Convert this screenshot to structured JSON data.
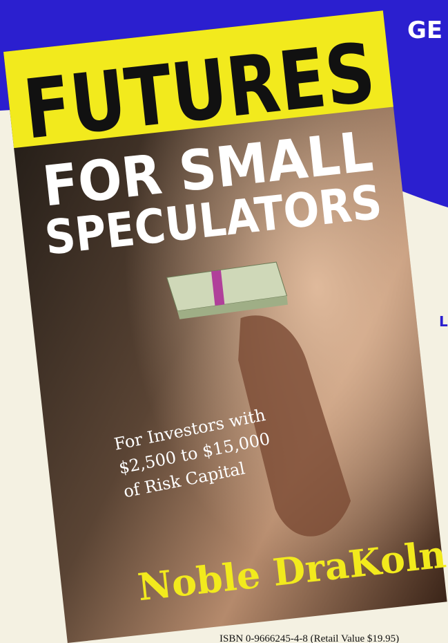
{
  "header": {
    "corner_text": "GE",
    "side_text": "L"
  },
  "book": {
    "title": "FUTURES",
    "subtitle_line1": "FOR SMALL",
    "subtitle_line2": "SPECULATORS",
    "tagline": [
      "For Investors with",
      "$2,500 to $15,000",
      "of Risk Capital"
    ],
    "author": "Noble DraKoln"
  },
  "footer": {
    "isbn": "ISBN 0-9666245-4-8 (Retail Value $19.95)"
  }
}
